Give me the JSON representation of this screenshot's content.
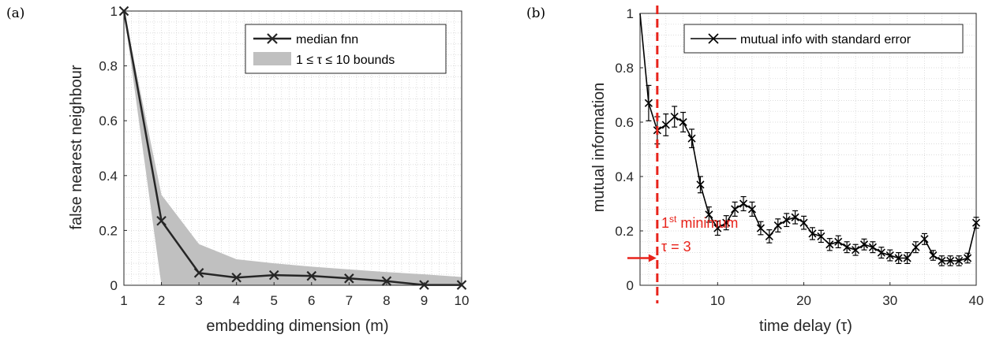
{
  "panels": {
    "a": {
      "label": "(a)"
    },
    "b": {
      "label": "(b)"
    }
  },
  "chart_data": [
    {
      "type": "line",
      "title": "",
      "xlabel": "embedding dimension (m)",
      "ylabel": "false nearest neighbour",
      "xlim": [
        1,
        10
      ],
      "ylim": [
        0,
        1
      ],
      "xticks": [
        "1",
        "2",
        "3",
        "4",
        "5",
        "6",
        "7",
        "8",
        "9",
        "10"
      ],
      "yticks": [
        "0",
        "0.2",
        "0.4",
        "0.6",
        "0.8",
        "1"
      ],
      "grid": true,
      "legend_position": "top-right",
      "legend_line": "median fnn",
      "legend_band": "1 ≤ τ ≤ 10 bounds",
      "series": [
        {
          "name": "median fnn",
          "x": [
            1,
            2,
            3,
            4,
            5,
            6,
            7,
            8,
            9,
            10
          ],
          "y": [
            1.0,
            0.235,
            0.045,
            0.028,
            0.037,
            0.034,
            0.025,
            0.015,
            0.001,
            0.001
          ]
        }
      ],
      "band": {
        "x": [
          1,
          2,
          3,
          4,
          5,
          6,
          7,
          8,
          9,
          10
        ],
        "upper": [
          1.0,
          0.33,
          0.15,
          0.095,
          0.08,
          0.068,
          0.058,
          0.048,
          0.04,
          0.03
        ],
        "lower": [
          1.0,
          0.0,
          0.0,
          0.0,
          0.0,
          0.0,
          0.0,
          0.0,
          0.0,
          0.0
        ]
      },
      "colors": {
        "line": "#262626",
        "band": "#c0c0c0"
      }
    },
    {
      "type": "line",
      "title": "",
      "xlabel": "time delay (τ)",
      "ylabel": "mutual information",
      "xlim": [
        1,
        40
      ],
      "ylim": [
        0,
        1
      ],
      "xticks": [
        "10",
        "20",
        "30",
        "40"
      ],
      "xtick_values": [
        10,
        20,
        30,
        40
      ],
      "yticks": [
        "0",
        "0.2",
        "0.4",
        "0.6",
        "0.8",
        "1"
      ],
      "grid": true,
      "legend_position": "top-right",
      "legend_line": "mutual info with standard error",
      "series": [
        {
          "name": "mutual info with standard error",
          "x": [
            1,
            2,
            3,
            4,
            5,
            6,
            7,
            8,
            9,
            10,
            11,
            12,
            13,
            14,
            15,
            16,
            17,
            18,
            19,
            20,
            21,
            22,
            23,
            24,
            25,
            26,
            27,
            28,
            29,
            30,
            31,
            32,
            33,
            34,
            35,
            36,
            37,
            38,
            39,
            40
          ],
          "y": [
            1.0,
            0.67,
            0.57,
            0.59,
            0.62,
            0.6,
            0.54,
            0.37,
            0.26,
            0.21,
            0.23,
            0.28,
            0.3,
            0.28,
            0.21,
            0.18,
            0.22,
            0.24,
            0.25,
            0.23,
            0.19,
            0.18,
            0.15,
            0.16,
            0.14,
            0.13,
            0.15,
            0.14,
            0.12,
            0.11,
            0.1,
            0.1,
            0.14,
            0.17,
            0.11,
            0.09,
            0.09,
            0.09,
            0.1,
            0.23
          ],
          "err": [
            0,
            0.065,
            0.05,
            0.04,
            0.038,
            0.036,
            0.034,
            0.03,
            0.028,
            0.026,
            0.026,
            0.026,
            0.026,
            0.026,
            0.024,
            0.024,
            0.024,
            0.024,
            0.024,
            0.024,
            0.022,
            0.022,
            0.022,
            0.022,
            0.02,
            0.02,
            0.02,
            0.02,
            0.02,
            0.02,
            0.02,
            0.02,
            0.02,
            0.02,
            0.018,
            0.018,
            0.018,
            0.018,
            0.018,
            0.02
          ]
        }
      ],
      "annotation": {
        "x": 3,
        "line1_prefix": "1",
        "line1_sup": "st",
        "line1_rest": " minimum",
        "line2": "τ = 3",
        "arrow_y": 0.1
      },
      "colors": {
        "line": "#000000",
        "marker": "#000000",
        "annotation": "#e8231b"
      }
    }
  ]
}
